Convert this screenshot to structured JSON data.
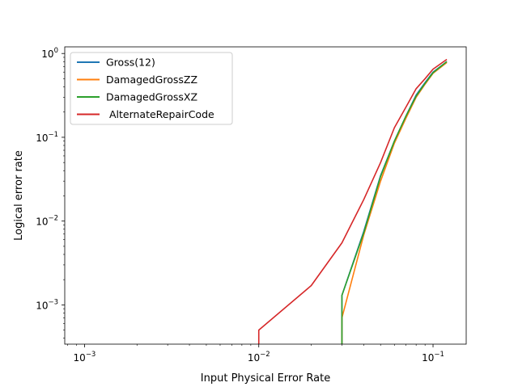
{
  "chart_data": {
    "type": "line",
    "title": "",
    "xlabel": "Input Physical Error Rate",
    "ylabel": "Logical error rate",
    "xscale": "log",
    "yscale": "log",
    "xlim": [
      0.00077,
      0.155
    ],
    "ylim": [
      0.00034,
      1.2
    ],
    "grid": false,
    "legend_position": "top-left",
    "x_ticks": [
      {
        "value": 0.001,
        "base": "10",
        "exp": "−3"
      },
      {
        "value": 0.01,
        "base": "10",
        "exp": "−2"
      },
      {
        "value": 0.1,
        "base": "10",
        "exp": "−1"
      }
    ],
    "y_ticks": [
      {
        "value": 0.001,
        "base": "10",
        "exp": "−3"
      },
      {
        "value": 0.01,
        "base": "10",
        "exp": "−2"
      },
      {
        "value": 0.1,
        "base": "10",
        "exp": "−1"
      },
      {
        "value": 1,
        "base": "10",
        "exp": "0"
      }
    ],
    "series": [
      {
        "name": "Gross(12)",
        "color": "#1f77b4",
        "points": [
          [
            0.03,
            0.00034
          ],
          [
            0.03,
            0.0013
          ],
          [
            0.04,
            0.0075
          ],
          [
            0.05,
            0.035
          ],
          [
            0.06,
            0.09
          ],
          [
            0.07,
            0.18
          ],
          [
            0.08,
            0.32
          ],
          [
            0.09,
            0.45
          ],
          [
            0.1,
            0.6
          ],
          [
            0.12,
            0.8
          ]
        ]
      },
      {
        "name": "DamagedGrossZZ",
        "color": "#ff7f0e",
        "points": [
          [
            0.03,
            0.00034
          ],
          [
            0.03,
            0.0007
          ],
          [
            0.04,
            0.0068
          ],
          [
            0.05,
            0.03
          ],
          [
            0.06,
            0.085
          ],
          [
            0.07,
            0.17
          ],
          [
            0.08,
            0.3
          ],
          [
            0.09,
            0.43
          ],
          [
            0.1,
            0.58
          ],
          [
            0.12,
            0.78
          ]
        ]
      },
      {
        "name": "DamagedGrossXZ",
        "color": "#2ca02c",
        "points": [
          [
            0.03,
            0.00034
          ],
          [
            0.03,
            0.0013
          ],
          [
            0.04,
            0.0072
          ],
          [
            0.05,
            0.034
          ],
          [
            0.06,
            0.09
          ],
          [
            0.07,
            0.18
          ],
          [
            0.08,
            0.31
          ],
          [
            0.09,
            0.44
          ],
          [
            0.1,
            0.59
          ],
          [
            0.12,
            0.8
          ]
        ]
      },
      {
        "name": " AlternateRepairCode",
        "color": "#d62728",
        "points": [
          [
            0.01,
            0.00034
          ],
          [
            0.01,
            0.0005
          ],
          [
            0.02,
            0.0017
          ],
          [
            0.03,
            0.0055
          ],
          [
            0.04,
            0.018
          ],
          [
            0.05,
            0.05
          ],
          [
            0.06,
            0.13
          ],
          [
            0.07,
            0.23
          ],
          [
            0.08,
            0.38
          ],
          [
            0.09,
            0.5
          ],
          [
            0.1,
            0.65
          ],
          [
            0.12,
            0.85
          ]
        ]
      }
    ]
  }
}
